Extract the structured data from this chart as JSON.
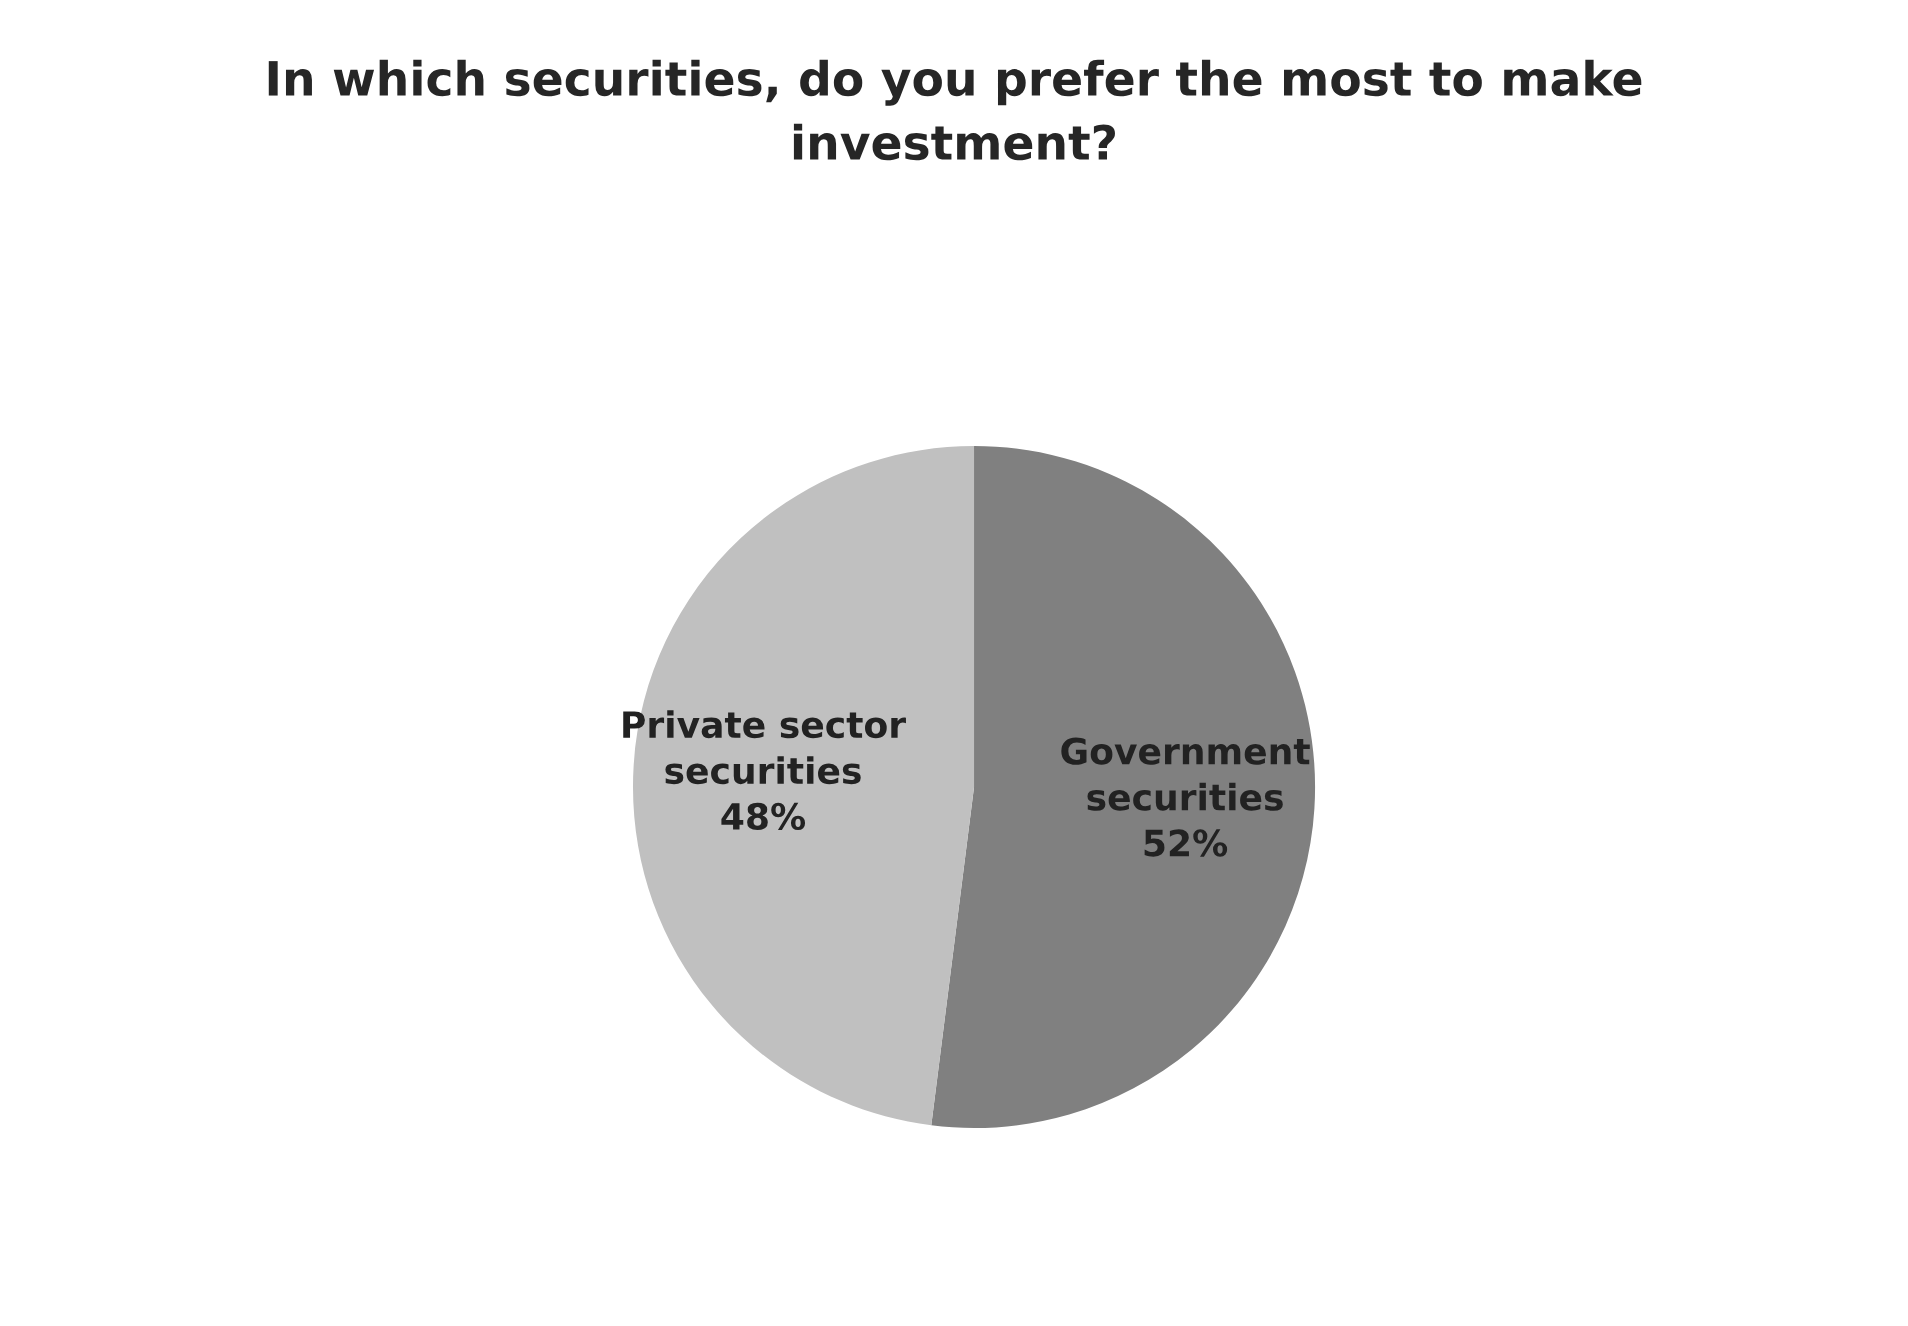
{
  "chart_data": {
    "type": "pie",
    "title": "In which securities, do you prefer the most to make investment?",
    "categories": [
      "Government securities",
      "Private sector securities"
    ],
    "values": [
      52,
      48
    ],
    "colors": [
      "#808080",
      "#c0c0c0"
    ],
    "value_labels": [
      "52%",
      "48%"
    ],
    "legend": false
  }
}
